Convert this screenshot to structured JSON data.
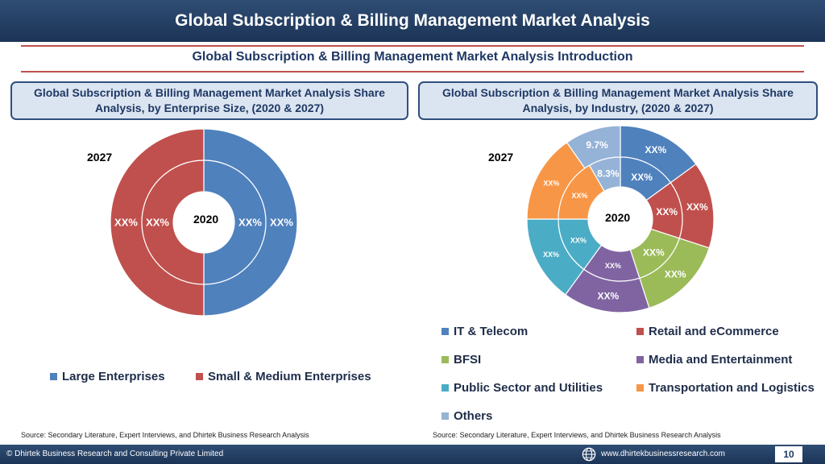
{
  "header": {
    "title": "Global Subscription & Billing Management Market Analysis"
  },
  "subtitle": "Global Subscription & Billing Management Market Analysis  Introduction",
  "left_panel": {
    "heading": "Global Subscription & Billing Management Market Analysis  Share Analysis, by Enterprise Size, (2020 & 2027)",
    "outer_year": "2027",
    "inner_year": "2020",
    "source": "Source: Secondary Literature, Expert Interviews, and Dhirtek Business Research Analysis"
  },
  "right_panel": {
    "heading": "Global Subscription & Billing Management Market Analysis  Share Analysis, by Industry, (2020 & 2027)",
    "outer_year": "2027",
    "inner_year": "2020",
    "source": "Source: Secondary Literature, Expert Interviews, and Dhirtek Business Research Analysis"
  },
  "chart_data": [
    {
      "type": "pie",
      "subtype": "doughnut",
      "categories": [
        "Large Enterprises",
        "Small & Medium Enterprises"
      ],
      "colors": [
        "#4f81bd",
        "#c0504d"
      ],
      "series": [
        {
          "name": "2027",
          "ring": "outer",
          "values": [
            50,
            50
          ],
          "labels": [
            "XX%",
            "XX%"
          ]
        },
        {
          "name": "2020",
          "ring": "inner",
          "values": [
            50,
            50
          ],
          "labels": [
            "XX%",
            "XX%"
          ]
        }
      ],
      "legend_position": "bottom"
    },
    {
      "type": "pie",
      "subtype": "doughnut",
      "categories": [
        "IT & Telecom",
        "Retail and eCommerce",
        "BFSI",
        "Media and Entertainment",
        "Public Sector and Utilities",
        "Transportation and Logistics",
        "Others"
      ],
      "colors": [
        "#4f81bd",
        "#c0504d",
        "#9bbb59",
        "#8064a2",
        "#4bacc6",
        "#f79646",
        "#95b3d7"
      ],
      "series": [
        {
          "name": "2027",
          "ring": "outer",
          "values": [
            15,
            15,
            15,
            15,
            15,
            15.3,
            9.7
          ],
          "labels": [
            "XX%",
            "XX%",
            "XX%",
            "XX%",
            "XX%",
            "XX%",
            "9.7%"
          ]
        },
        {
          "name": "2020",
          "ring": "inner",
          "values": [
            15,
            15,
            15,
            15,
            15,
            16.7,
            8.3
          ],
          "labels": [
            "XX%",
            "XX%",
            "XX%",
            "XX%",
            "XX%",
            "XX%",
            "8.3%"
          ]
        }
      ],
      "legend_position": "bottom"
    }
  ],
  "footer": {
    "copyright": "© Dhirtek Business Research and Consulting Private Limited",
    "website": "www.dhirtekbusinessresearch.com",
    "page_number": "10"
  }
}
